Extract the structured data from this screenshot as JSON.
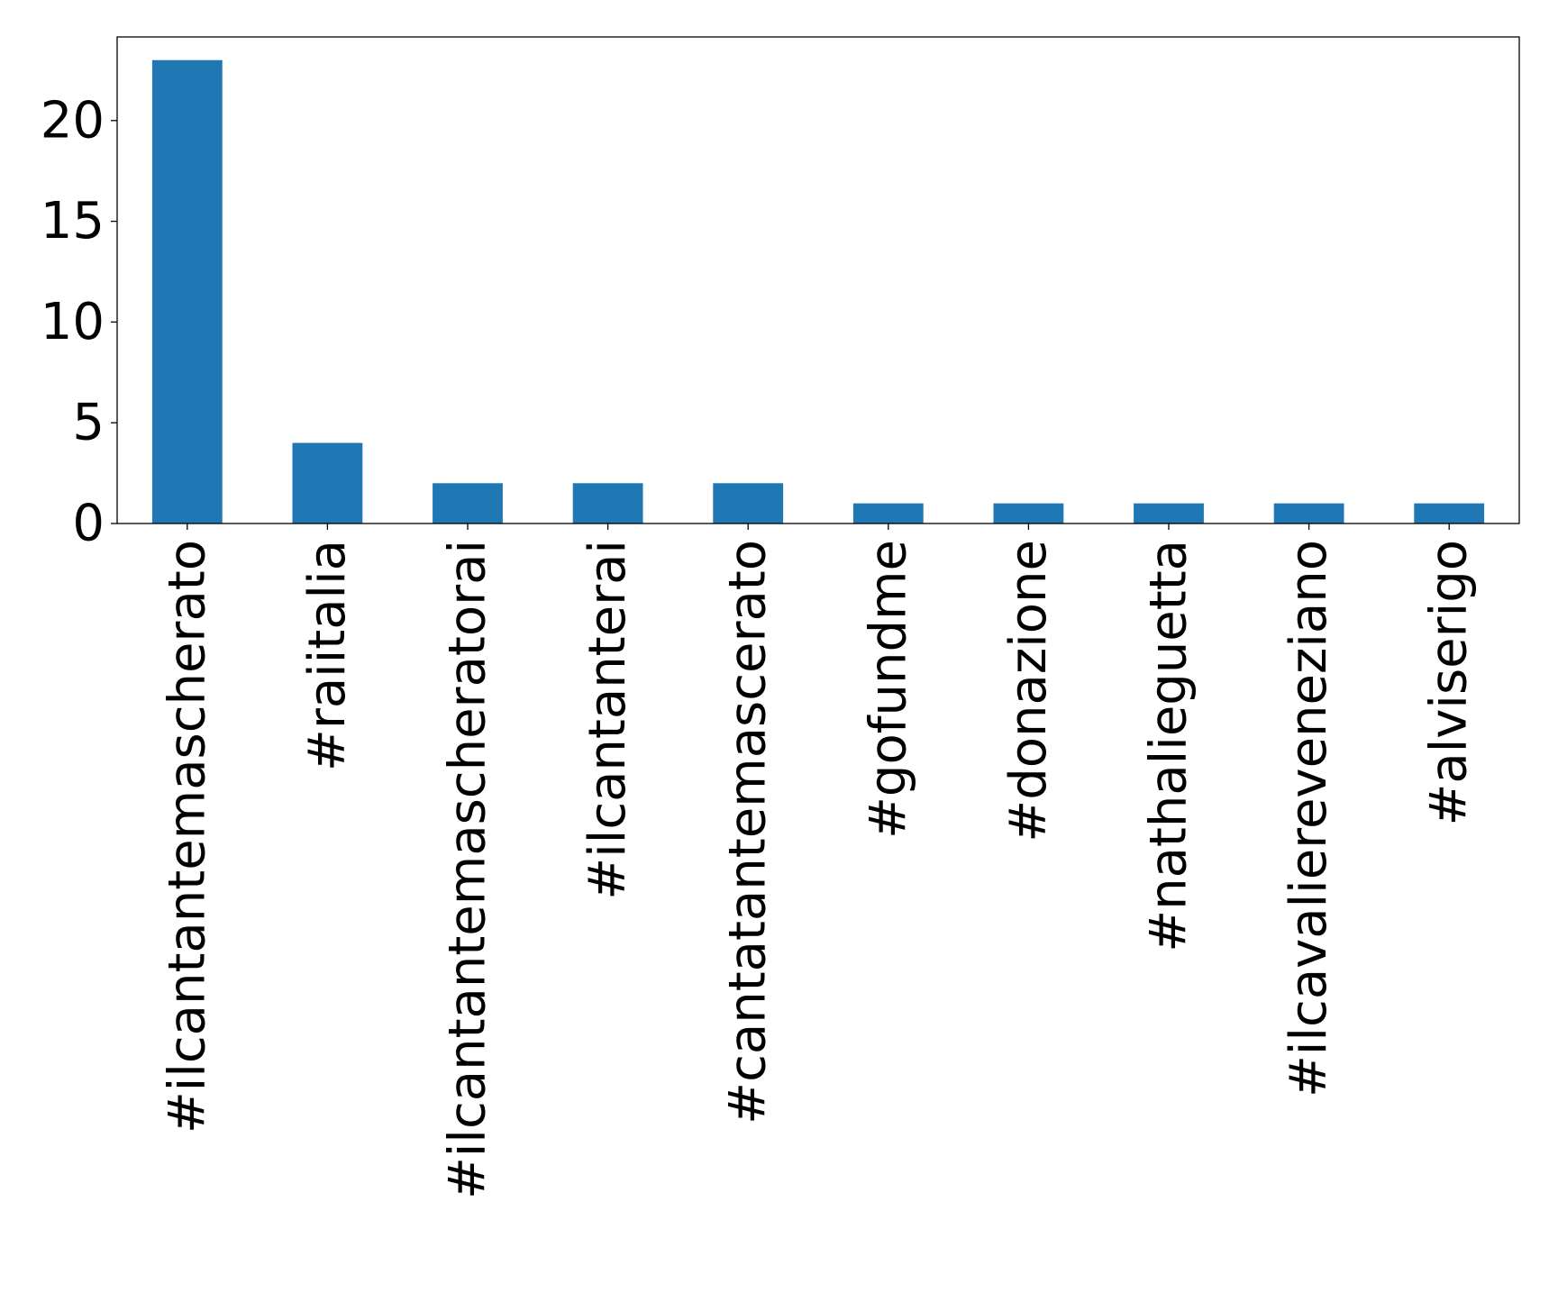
{
  "chart_data": {
    "type": "bar",
    "title": "",
    "xlabel": "",
    "ylabel": "",
    "categories": [
      "#ilcantantemascherato",
      "#raiitalia",
      "#ilcantantemascheratorai",
      "#ilcantanterai",
      "#cantatantemascerato",
      "#gofundme",
      "#donazione",
      "#nathalieguetta",
      "#ilcavaliereveneziano",
      "#alviserigo"
    ],
    "values": [
      23,
      4,
      2,
      2,
      2,
      1,
      1,
      1,
      1,
      1
    ],
    "ylim": [
      0,
      24.15
    ],
    "yticks": [
      0,
      5,
      10,
      15,
      20
    ],
    "bar_color": "#1f77b4",
    "grid": false,
    "legend": "none"
  }
}
